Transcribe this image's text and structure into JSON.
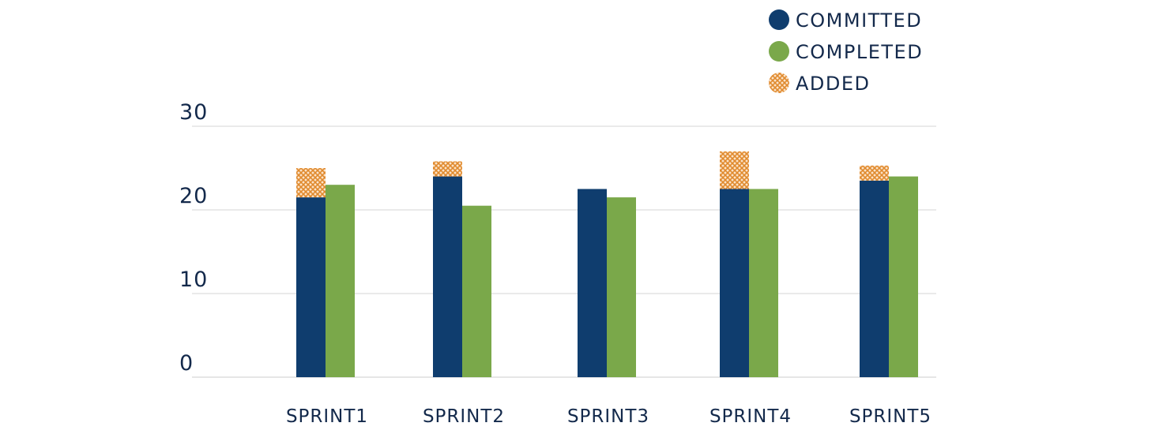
{
  "chart_data": {
    "type": "bar",
    "title": "",
    "xlabel": "",
    "ylabel": "",
    "ylim": [
      0,
      30
    ],
    "yticks": [
      0,
      10,
      20,
      30
    ],
    "categories": [
      "SPRINT1",
      "SPRINT2",
      "SPRINT3",
      "SPRINT4",
      "SPRINT5"
    ],
    "series": [
      {
        "name": "COMMITTED",
        "values": [
          21.5,
          24,
          22.5,
          22.5,
          23.5
        ],
        "color": "#0f3d6e"
      },
      {
        "name": "COMPLETED",
        "values": [
          23,
          20.5,
          21.5,
          22.5,
          24
        ],
        "color": "#7aa84a"
      },
      {
        "name": "ADDED",
        "values": [
          3.5,
          1.8,
          0,
          4.5,
          1.8
        ],
        "color": "#e08a2e",
        "stacked_on": "COMMITTED",
        "pattern": "crosshatch"
      }
    ],
    "legend": "top-right",
    "grid": true
  }
}
